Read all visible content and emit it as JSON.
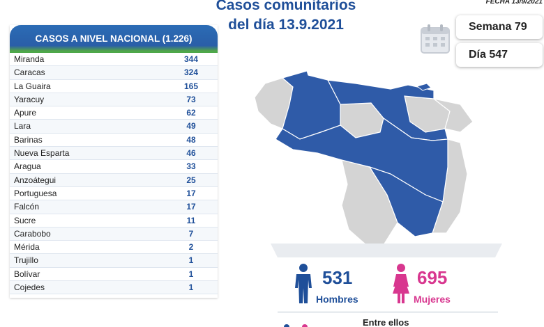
{
  "header": {
    "title_line1": "Casos comunitarios",
    "title_line2": "del día 13.9.2021",
    "date_label": "FECHA 13/9/2021"
  },
  "badges": {
    "week": "Semana 79",
    "day": "Día 547",
    "icon": "calendar-icon"
  },
  "table": {
    "title": "CASOS A NIVEL NACIONAL (1.226)",
    "rows": [
      {
        "state": "Miranda",
        "count": "344"
      },
      {
        "state": "Caracas",
        "count": "324"
      },
      {
        "state": "La Guaira",
        "count": "165"
      },
      {
        "state": "Yaracuy",
        "count": "73"
      },
      {
        "state": "Apure",
        "count": "62"
      },
      {
        "state": "Lara",
        "count": "49"
      },
      {
        "state": "Barinas",
        "count": "48"
      },
      {
        "state": "Nueva Esparta",
        "count": "46"
      },
      {
        "state": "Aragua",
        "count": "33"
      },
      {
        "state": "Anzoátegui",
        "count": "25"
      },
      {
        "state": "Portuguesa",
        "count": "17"
      },
      {
        "state": "Falcón",
        "count": "17"
      },
      {
        "state": "Sucre",
        "count": "11"
      },
      {
        "state": "Carabobo",
        "count": "7"
      },
      {
        "state": "Mérida",
        "count": "2"
      },
      {
        "state": "Trujillo",
        "count": "1"
      },
      {
        "state": "Bolívar",
        "count": "1"
      },
      {
        "state": "Cojedes",
        "count": "1"
      }
    ]
  },
  "gender": {
    "men_count": "531",
    "men_label": "Hombres",
    "women_count": "695",
    "women_label": "Mujeres",
    "men_icon": "man-icon",
    "women_icon": "woman-icon"
  },
  "footer": {
    "between_label": "Entre ellos"
  },
  "colors": {
    "primary_blue": "#1f4f99",
    "map_highlight": "#2f5ba8",
    "map_base": "#d4d4d4",
    "women_pink": "#d8378f",
    "header_green": "#4ea84a"
  }
}
